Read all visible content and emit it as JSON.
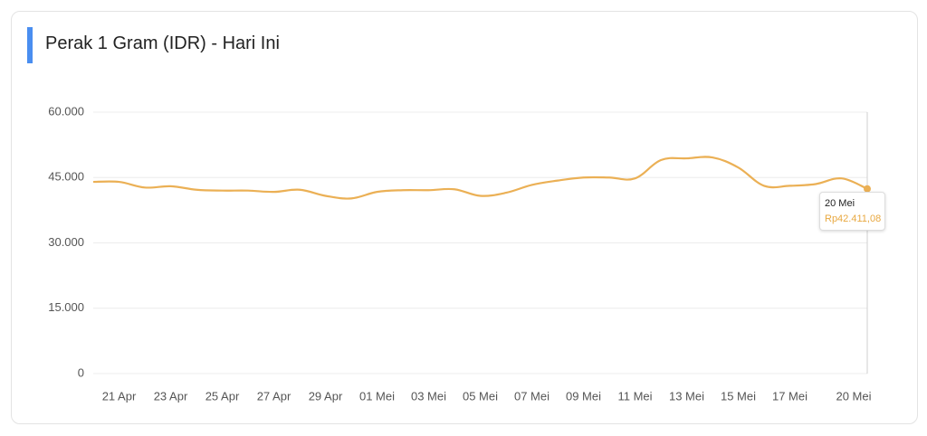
{
  "chart_data": {
    "type": "line",
    "title": "Perak 1 Gram (IDR) - Hari Ini",
    "categories": [
      null,
      "21 Apr",
      null,
      "23 Apr",
      null,
      "25 Apr",
      null,
      "27 Apr",
      null,
      "29 Apr",
      null,
      "01 Mei",
      null,
      "03 Mei",
      null,
      "05 Mei",
      null,
      "07 Mei",
      null,
      "09 Mei",
      null,
      "11 Mei",
      null,
      "13 Mei",
      null,
      "15 Mei",
      null,
      "17 Mei",
      null,
      null,
      "20 Mei"
    ],
    "series": [
      {
        "name": "Perak 1 Gram",
        "color": "#ebb055",
        "values": [
          44000,
          44000,
          42700,
          43000,
          42200,
          42000,
          42000,
          41700,
          42200,
          40800,
          40200,
          41700,
          42100,
          42100,
          42300,
          40800,
          41500,
          43300,
          44300,
          45000,
          45000,
          44800,
          49000,
          49400,
          49600,
          47300,
          43100,
          43100,
          43500,
          44800,
          42411.08
        ]
      }
    ],
    "ylim": [
      0,
      60000
    ],
    "yticks": [
      0,
      {
        "value": 15000,
        "label": "15.000"
      },
      {
        "value": 30000,
        "label": "30.000"
      },
      {
        "value": 45000,
        "label": "45.000"
      },
      {
        "value": 60000,
        "label": "60.000"
      }
    ],
    "grid": true,
    "tooltip": {
      "date": "20 Mei",
      "value": "Rp42.411,08"
    }
  }
}
